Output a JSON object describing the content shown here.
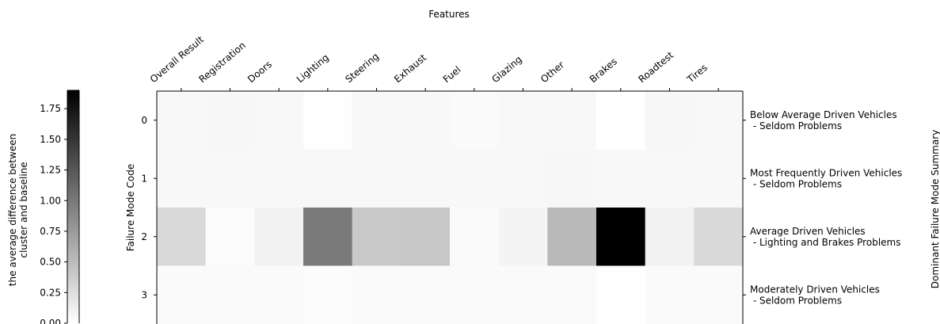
{
  "chart_data": {
    "type": "heatmap",
    "title": "",
    "xlabel": "Features",
    "ylabel": "Failure Mode Code",
    "right_label": "Dominant Failure Mode Summary",
    "x_categories": [
      "Overall Result",
      "Registration",
      "Doors",
      "Lighting",
      "Steering",
      "Exhaust",
      "Fuel",
      "Glazing",
      "Other",
      "Brakes",
      "Roadtest",
      "Tires"
    ],
    "y_categories": [
      "0",
      "1",
      "2",
      "3"
    ],
    "row_summaries": [
      [
        "Below Average Driven Vehicles",
        " - Seldom Problems"
      ],
      [
        "Most Frequently Driven Vehicles",
        " - Seldom Problems"
      ],
      [
        "Average Driven Vehicles",
        " - Lighting and Brakes Problems"
      ],
      [
        "Moderately Driven Vehicles",
        " - Seldom Problems"
      ]
    ],
    "values": [
      [
        0.05,
        0.06,
        0.05,
        0.01,
        0.05,
        0.05,
        0.04,
        0.05,
        0.05,
        0.0,
        0.06,
        0.05
      ],
      [
        0.05,
        0.05,
        0.05,
        0.05,
        0.05,
        0.05,
        0.05,
        0.05,
        0.06,
        0.05,
        0.05,
        0.05
      ],
      [
        0.28,
        0.02,
        0.1,
        1.0,
        0.4,
        0.42,
        0.04,
        0.08,
        0.52,
        1.9,
        0.1,
        0.28
      ],
      [
        0.04,
        0.04,
        0.04,
        0.03,
        0.04,
        0.04,
        0.04,
        0.04,
        0.04,
        0.01,
        0.04,
        0.04
      ]
    ],
    "colorbar": {
      "label_lines": [
        "the average difference between",
        "cluster and baseline"
      ],
      "ticks": [
        "0.00",
        "0.25",
        "0.50",
        "0.75",
        "1.00",
        "1.25",
        "1.50",
        "1.75"
      ],
      "tick_values": [
        0,
        0.25,
        0.5,
        0.75,
        1.0,
        1.25,
        1.5,
        1.75
      ],
      "range": [
        0,
        1.9
      ],
      "colormap": "Greys",
      "color_low": "#ffffff",
      "color_high": "#000000"
    }
  }
}
